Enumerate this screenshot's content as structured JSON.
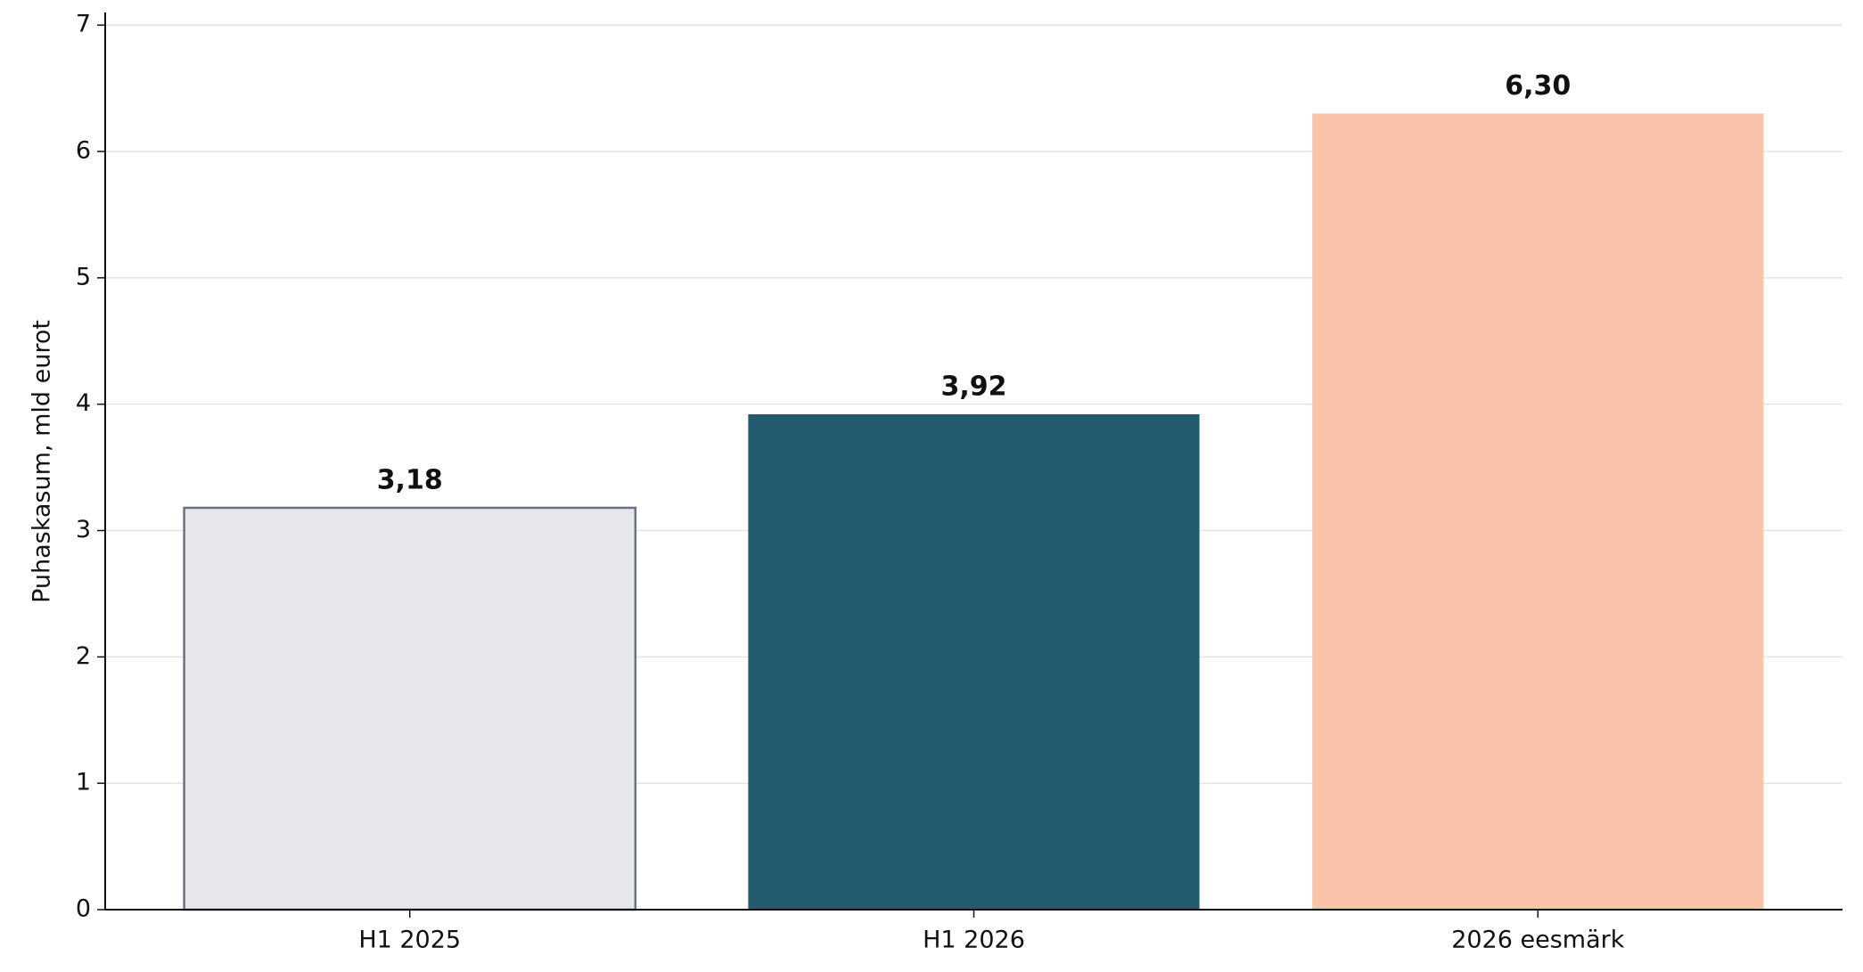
{
  "chart_data": {
    "type": "bar",
    "ylabel": "Puhaskasum, mld eurot",
    "categories": [
      "H1 2025",
      "H1 2026",
      "2026 eesmärk"
    ],
    "values": [
      3.18,
      3.92,
      6.3
    ],
    "value_labels": [
      "3,18",
      "3,92",
      "6,30"
    ],
    "colors": [
      "#e6e7eb",
      "#245b6e",
      "#f9c3a9"
    ],
    "edgecolors": [
      "#6b7280",
      "none",
      "none"
    ],
    "ylim": [
      0,
      7.1
    ],
    "yticks": [
      0,
      1,
      2,
      3,
      4,
      5,
      6,
      7
    ],
    "grid": true
  }
}
